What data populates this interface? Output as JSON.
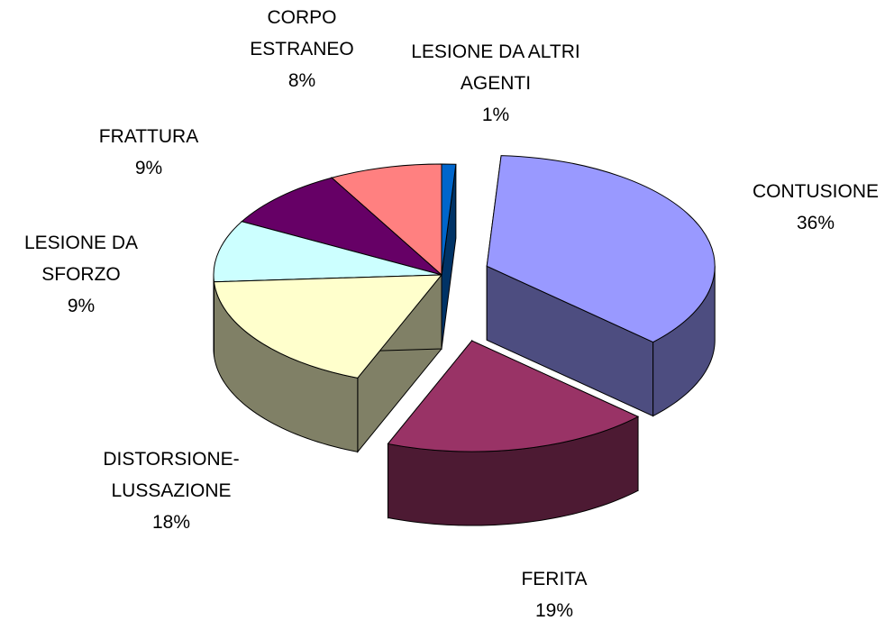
{
  "chart_data": {
    "type": "pie",
    "categories": [
      "LESIONE DA ALTRI AGENTI",
      "CONTUSIONE",
      "FERITA",
      "DISTORSIONE-LUSSAZIONE",
      "LESIONE DA SFORZO",
      "FRATTURA",
      "CORPO ESTRANEO"
    ],
    "values": [
      1,
      36,
      19,
      18,
      9,
      9,
      8
    ],
    "value_labels": [
      "1%",
      "36%",
      "19%",
      "18%",
      "9%",
      "9%",
      "8%"
    ],
    "colors": [
      "#0066cc",
      "#9999ff",
      "#993366",
      "#ffffcc",
      "#ccffff",
      "#660066",
      "#ff8080"
    ]
  }
}
